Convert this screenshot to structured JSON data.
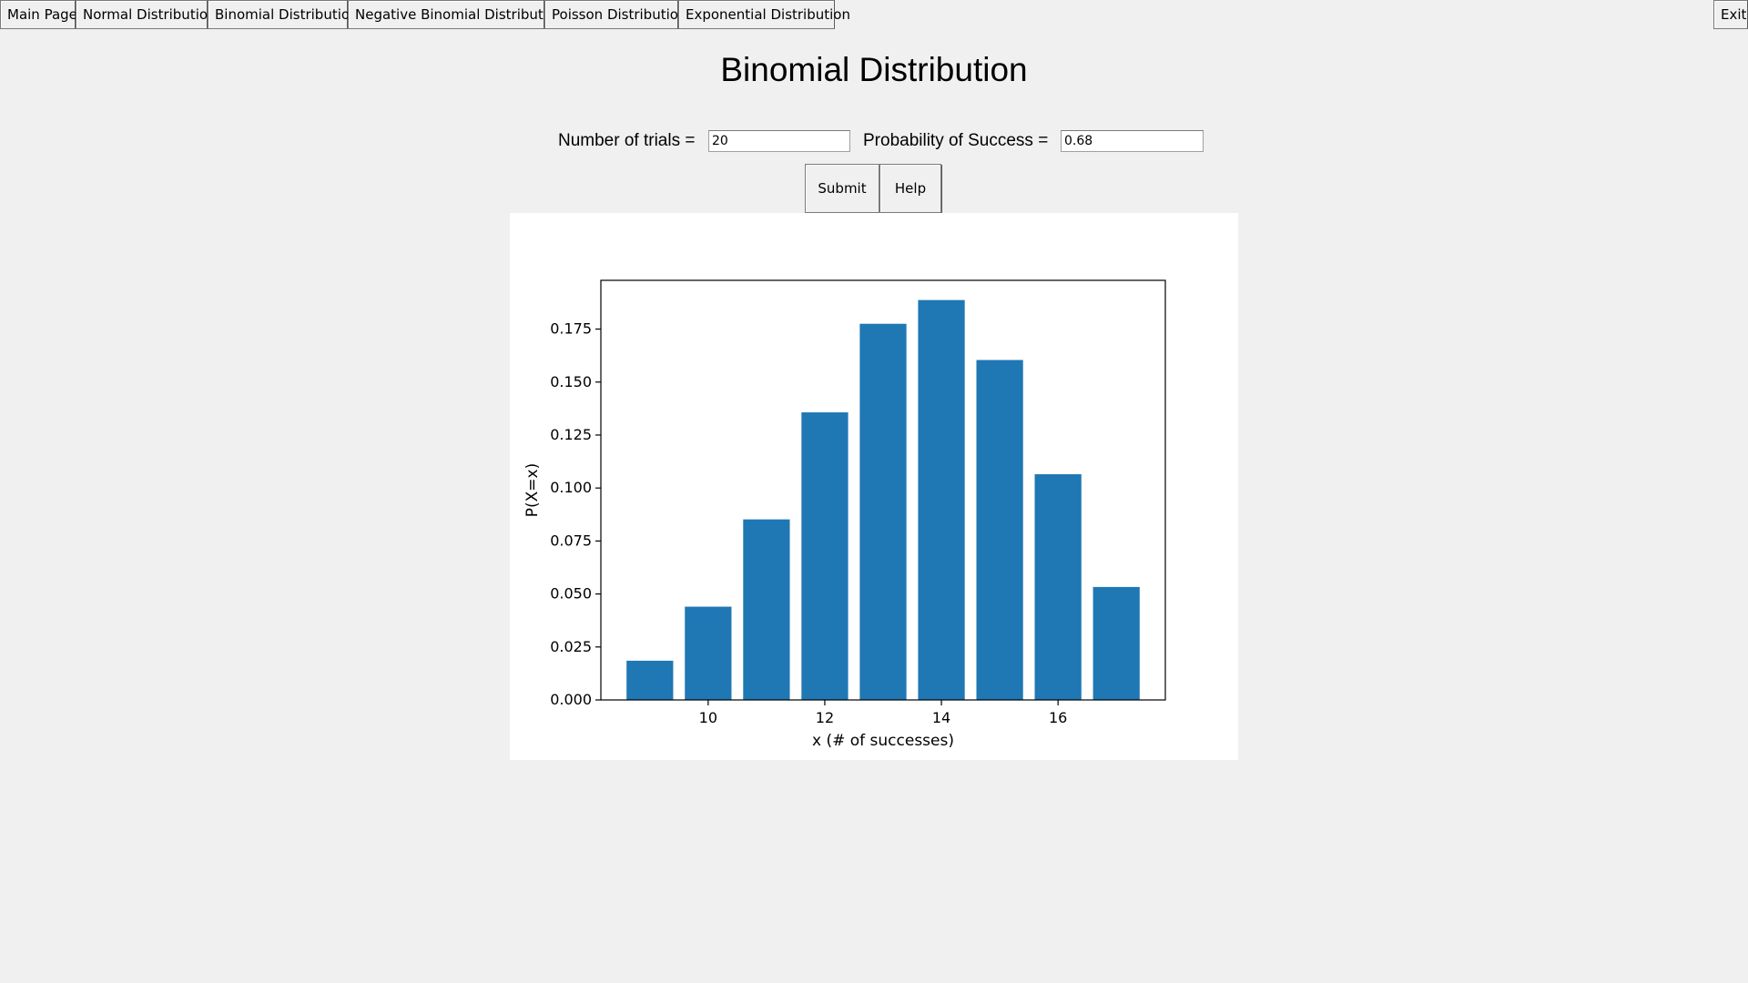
{
  "toolbar": {
    "items": [
      {
        "label": "Main Page"
      },
      {
        "label": "Normal Distribution"
      },
      {
        "label": "Binomial Distribution"
      },
      {
        "label": "Negative Binomial Distribution"
      },
      {
        "label": "Poisson Distribution"
      },
      {
        "label": "Exponential Distribution"
      }
    ],
    "exit_label": "Exit"
  },
  "page": {
    "title": "Binomial Distribution"
  },
  "form": {
    "trials_label": "Number of trials =",
    "trials_value": "20",
    "prob_label": "Probability of Success =",
    "prob_value": "0.68",
    "submit_label": "Submit",
    "help_label": "Help"
  },
  "chart_data": {
    "type": "bar",
    "x": [
      9,
      10,
      11,
      12,
      13,
      14,
      15,
      16,
      17
    ],
    "values": [
      0.0185,
      0.044,
      0.0852,
      0.1357,
      0.1775,
      0.1887,
      0.1604,
      0.1065,
      0.0533
    ],
    "bar_color": "#1f77b4",
    "xlabel": "x (# of successes)",
    "ylabel": "P(X=x)",
    "xlim": [
      8.16,
      17.84
    ],
    "ylim": [
      0,
      0.198
    ],
    "xticks": [
      10,
      12,
      14,
      16
    ],
    "xtick_labels": [
      "10",
      "12",
      "14",
      "16"
    ],
    "yticks": [
      0,
      0.025,
      0.05,
      0.075,
      0.1,
      0.125,
      0.15,
      0.175
    ],
    "ytick_labels": [
      "0.000",
      "0.025",
      "0.050",
      "0.075",
      "0.100",
      "0.125",
      "0.150",
      "0.175"
    ],
    "grid": false,
    "legend": "none"
  }
}
